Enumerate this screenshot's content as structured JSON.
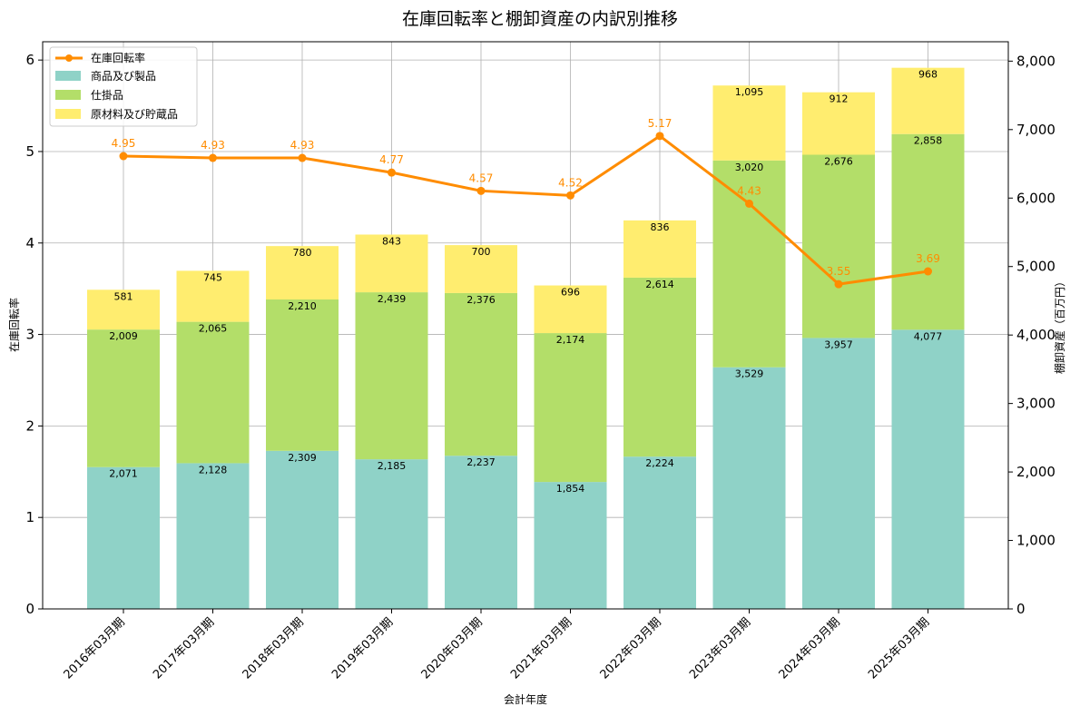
{
  "chart_data": {
    "type": "bar",
    "stacked": true,
    "title": "在庫回転率と棚卸資産の内訳別推移",
    "xlabel": "会計年度",
    "ylabel_left": "在庫回転率",
    "ylabel_right": "棚卸資産（百万円）",
    "categories": [
      "2016年03月期",
      "2017年03月期",
      "2018年03月期",
      "2019年03月期",
      "2020年03月期",
      "2021年03月期",
      "2022年03月期",
      "2023年03月期",
      "2024年03月期",
      "2025年03月期"
    ],
    "series": [
      {
        "name": "商品及び製品",
        "axis": "right",
        "color": "#8fd2c7",
        "values": [
          2071,
          2128,
          2309,
          2185,
          2237,
          1854,
          2224,
          3529,
          3957,
          4077
        ],
        "labels": [
          "2,071",
          "2,128",
          "2,309",
          "2,185",
          "2,237",
          "1,854",
          "2,224",
          "3,529",
          "3,957",
          "4,077"
        ]
      },
      {
        "name": "仕掛品",
        "axis": "right",
        "color": "#b3de69",
        "values": [
          2009,
          2065,
          2210,
          2439,
          2376,
          2174,
          2614,
          3020,
          2676,
          2858
        ],
        "labels": [
          "2,009",
          "2,065",
          "2,210",
          "2,439",
          "2,376",
          "2,174",
          "2,614",
          "3,020",
          "2,676",
          "2,858"
        ]
      },
      {
        "name": "原材料及び貯蔵品",
        "axis": "right",
        "color": "#ffed6f",
        "values": [
          581,
          745,
          780,
          843,
          700,
          696,
          836,
          1095,
          912,
          968
        ],
        "labels": [
          "581",
          "745",
          "780",
          "843",
          "700",
          "696",
          "836",
          "1,095",
          "912",
          "968"
        ]
      }
    ],
    "line": {
      "name": "在庫回転率",
      "axis": "left",
      "color": "#ff8c00",
      "values": [
        4.95,
        4.93,
        4.93,
        4.77,
        4.57,
        4.52,
        5.17,
        4.43,
        3.55,
        3.69
      ],
      "labels": [
        "4.95",
        "4.93",
        "4.93",
        "4.77",
        "4.57",
        "4.52",
        "5.17",
        "4.43",
        "3.55",
        "3.69"
      ]
    },
    "ylim_left": [
      0,
      6.2
    ],
    "ylim_right": [
      0,
      8283
    ],
    "yticks_left": [
      "0",
      "1",
      "2",
      "3",
      "4",
      "5",
      "6"
    ],
    "yticks_right": [
      "0",
      "1,000",
      "2,000",
      "3,000",
      "4,000",
      "5,000",
      "6,000",
      "7,000",
      "8,000"
    ],
    "grid": true,
    "legend": "top-left"
  }
}
